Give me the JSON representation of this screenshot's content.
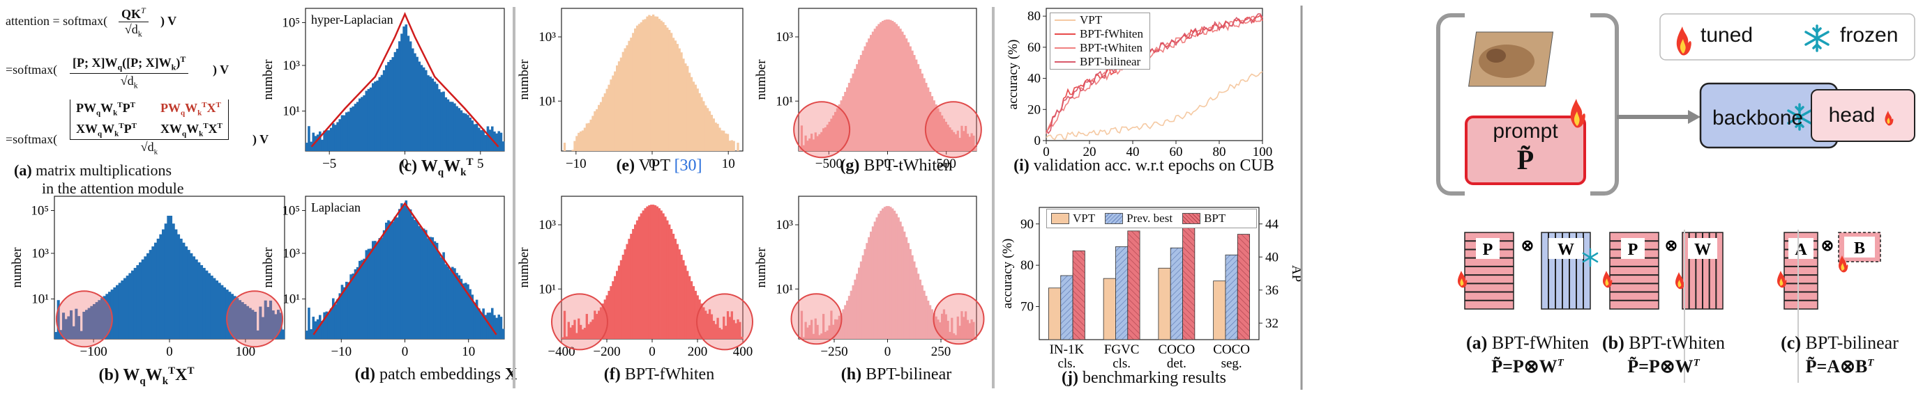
{
  "colors": {
    "blue": "#1f6fb5",
    "peach": "#f5c9a2",
    "red": "#f06363",
    "pink": "#f2a0a0",
    "darkred": "#d9363e",
    "bpt": "#e8757d"
  },
  "eqs": {
    "l1": "attention = softmax(",
    "l1b": "QK",
    "l1sup": "T",
    "l1den": "√d",
    "l1dens": "k",
    "l1end": ") V",
    "l2pre": "=softmax(",
    "l2num": "[P; X]W",
    "l2num2": "([P; X]W",
    "l2num3": ")",
    "l2den": "√d",
    "l2end": ") V",
    "l3pre": "=softmax(",
    "l3a": "PW",
    "l3b": "W",
    "l3c": "P",
    "l3d": "PW",
    "l3e": "W",
    "l3f": "X",
    "l3g": "XW",
    "l3h": "W",
    "l3i": "P",
    "l3j": "XW",
    "l3k": "W",
    "l3l": "X",
    "l3den": "√d",
    "l3end": ") V",
    "q": "q",
    "k": "k",
    "T": "T"
  },
  "captions": {
    "a_label": "(a)",
    "a_text1": " matrix multiplications",
    "a_text2": "in the attention module",
    "b_label": "(b)",
    "b_text": " W",
    "c_label": "(c)",
    "c_text": " W",
    "d_label": "(d)",
    "d_text": " patch embeddings ",
    "d_X": "X",
    "e_label": "(e)",
    "e_text": " VPT ",
    "e_ref": "[30]",
    "f_label": "(f)",
    "f_text": " BPT-fWhiten",
    "g_label": "(g)",
    "g_text": " BPT-tWhiten",
    "h_label": "(h)",
    "h_text": " BPT-bilinear",
    "i_label": "(i)",
    "i_text": " validation acc. w.r.t epochs on CUB",
    "j_label": "(j)",
    "j_text": " benchmarking results",
    "q_sub": "q",
    "k_sub": "k",
    "T_sup": "T",
    "X": "X"
  },
  "hist": {
    "b": {
      "ylabel": "number",
      "xticks": [
        "−100",
        "0",
        "100"
      ],
      "yticks": [
        "10¹",
        "10³",
        "10⁵"
      ]
    },
    "c": {
      "ylabel": "number",
      "title": "hyper-Laplacian",
      "xticks": [
        "−5",
        "0",
        "5"
      ],
      "yticks": [
        "10¹",
        "10³",
        "10⁵"
      ]
    },
    "d": {
      "ylabel": "number",
      "title": "Laplacian",
      "xticks": [
        "−10",
        "0",
        "10"
      ],
      "yticks": [
        "10¹",
        "10³",
        "10⁵"
      ]
    },
    "e": {
      "ylabel": "number",
      "xticks": [
        "−10",
        "0",
        "10"
      ],
      "yticks": [
        "10¹",
        "10³"
      ]
    },
    "f": {
      "ylabel": "number",
      "xticks": [
        "−400",
        "−200",
        "0",
        "200",
        "400"
      ],
      "yticks": [
        "10¹",
        "10³"
      ]
    },
    "g": {
      "ylabel": "number",
      "xticks": [
        "−500",
        "0",
        "500"
      ],
      "yticks": [
        "10¹",
        "10³"
      ]
    },
    "h": {
      "ylabel": "number",
      "xticks": [
        "−250",
        "0",
        "250"
      ],
      "yticks": [
        "10¹",
        "10³"
      ]
    }
  },
  "chart_data": [
    {
      "type": "line",
      "title": "validation acc. w.r.t epochs on CUB",
      "xlabel": "",
      "ylabel": "accuracy (%)",
      "xlim": [
        0,
        100
      ],
      "ylim": [
        0,
        85
      ],
      "xticks": [
        "0",
        "20",
        "40",
        "60",
        "80",
        "100"
      ],
      "yticks": [
        "0",
        "20",
        "40",
        "60",
        "80"
      ],
      "x": [
        0,
        10,
        20,
        30,
        40,
        50,
        60,
        70,
        80,
        90,
        100
      ],
      "series": [
        {
          "name": "VPT",
          "color": "#f5c9a2",
          "values": [
            2,
            3,
            5,
            6,
            8,
            10,
            14,
            20,
            30,
            38,
            44
          ]
        },
        {
          "name": "BPT-fWhiten",
          "color": "#e84a4a",
          "values": [
            5,
            30,
            40,
            45,
            52,
            58,
            64,
            70,
            73,
            77,
            79
          ]
        },
        {
          "name": "BPT-tWhiten",
          "color": "#f08080",
          "values": [
            5,
            25,
            36,
            44,
            50,
            57,
            63,
            69,
            73,
            76,
            78
          ]
        },
        {
          "name": "BPT-bilinear",
          "color": "#d9586a",
          "values": [
            5,
            28,
            38,
            45,
            51,
            58,
            64,
            70,
            74,
            77,
            79
          ]
        }
      ]
    },
    {
      "type": "bar",
      "title": "benchmarking results",
      "ylabel": "accuracy (%)",
      "y2label": "AP",
      "categories": [
        "IN-1K cls.",
        "FGVC cls.",
        "COCO det.",
        "COCO seg."
      ],
      "cat_line1": [
        "IN-1K",
        "FGVC",
        "COCO",
        "COCO"
      ],
      "cat_line2": [
        "cls.",
        "cls.",
        "det.",
        "seg."
      ],
      "yticks": [
        "70",
        "80",
        "90"
      ],
      "ylim": [
        62,
        94
      ],
      "y2ticks": [
        "32",
        "36",
        "40",
        "44"
      ],
      "y2lim": [
        30,
        46
      ],
      "series": [
        {
          "name": "VPT",
          "color": "#f5c9a2",
          "values": [
            74.5,
            76.8,
            79.3,
            76.2
          ]
        },
        {
          "name": "Prev. best",
          "color": "#a8c0e6",
          "values": [
            77.5,
            84.5,
            84.2,
            82.5
          ]
        },
        {
          "name": "BPT",
          "color": "#e8757d",
          "values": [
            83.5,
            88.3,
            93.0,
            87.5
          ]
        }
      ]
    }
  ],
  "schematic": {
    "tuned": "tuned",
    "frozen": "frozen",
    "prompt": "prompt",
    "P": "P̃",
    "backbone": "backbone",
    "head": "head",
    "cap_a_lbl": "(a)",
    "cap_a": " BPT-fWhiten",
    "cap_b_lbl": "(b)",
    "cap_b": " BPT-tWhiten",
    "cap_c_lbl": "(c)",
    "cap_c": " BPT-bilinear",
    "eq_a": "P̃=P⊗W",
    "eq_b": "P̃=P⊗W",
    "eq_c": "P̃=A⊗B",
    "T": "T",
    "mat_P": "P",
    "mat_W": "W",
    "mat_A": "A",
    "mat_B": "B",
    "otimes": "⊗"
  }
}
